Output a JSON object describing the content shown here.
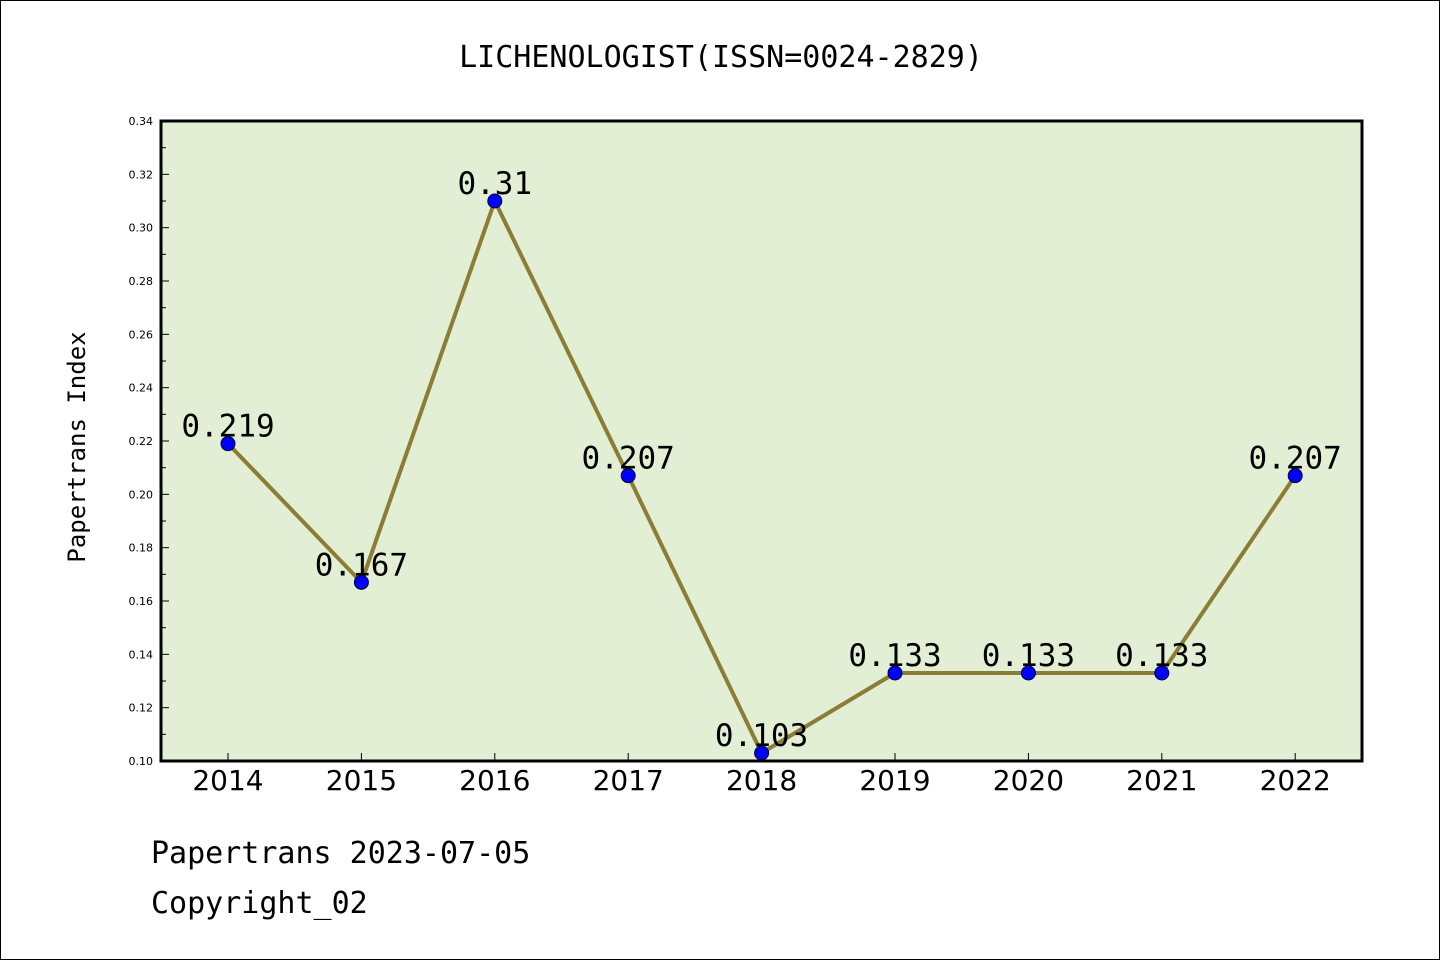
{
  "chart_data": {
    "type": "line",
    "title": "LICHENOLOGIST(ISSN=0024-2829)",
    "xlabel": "",
    "ylabel": "Papertrans Index",
    "categories": [
      "2014",
      "2015",
      "2016",
      "2017",
      "2018",
      "2019",
      "2020",
      "2021",
      "2022"
    ],
    "values": [
      0.219,
      0.167,
      0.31,
      0.207,
      0.103,
      0.133,
      0.133,
      0.133,
      0.207
    ],
    "data_labels": [
      "0.219",
      "0.167",
      "0.31",
      "0.207",
      "0.103",
      "0.133",
      "0.133",
      "0.133",
      "0.207"
    ],
    "ylim": [
      0.1,
      0.34
    ],
    "yticks": [
      "0.10",
      "0.12",
      "0.14",
      "0.16",
      "0.18",
      "0.20",
      "0.22",
      "0.24",
      "0.26",
      "0.28",
      "0.30",
      "0.32",
      "0.34"
    ],
    "grid": false,
    "colors": {
      "plot_background": "#e2efd5",
      "line": "#8b7d35",
      "marker": "#0000ff"
    }
  },
  "footer": {
    "line1": "Papertrans 2023-07-05",
    "line2": "Copyright_02"
  }
}
